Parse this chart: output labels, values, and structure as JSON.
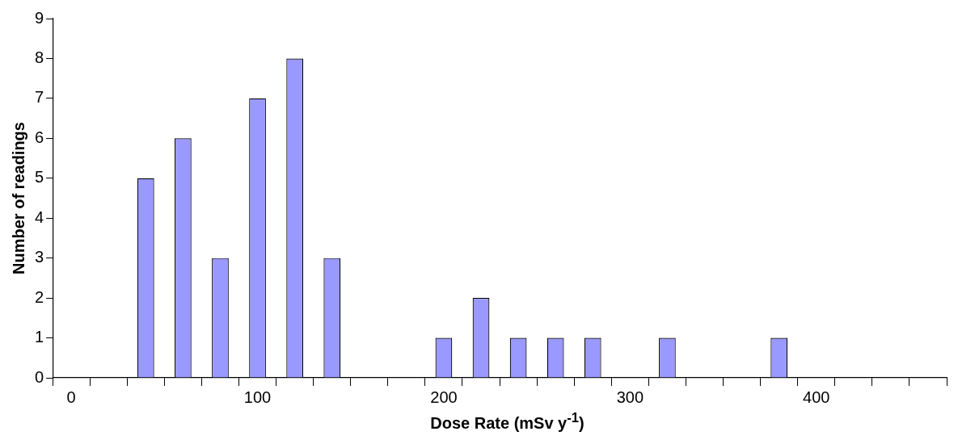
{
  "chart_data": {
    "type": "bar",
    "xlabel": "Dose Rate (mSv y$^{-1}$)",
    "ylabel": "Number of readings",
    "categories": [
      "0",
      null,
      null,
      null,
      null,
      "100",
      null,
      null,
      null,
      null,
      "200",
      null,
      null,
      null,
      null,
      "300",
      null,
      null,
      null,
      null,
      "400",
      null,
      null,
      null
    ],
    "values": [
      0,
      0,
      5,
      6,
      3,
      7,
      8,
      3,
      0,
      0,
      1,
      2,
      1,
      1,
      1,
      0,
      1,
      0,
      0,
      1,
      0,
      0,
      0,
      0
    ],
    "color": "#9999ff",
    "ylim": [
      0,
      9
    ],
    "yticks": [
      0,
      1,
      2,
      3,
      4,
      5,
      6,
      7,
      8,
      9
    ],
    "grid": false,
    "legend": false
  }
}
